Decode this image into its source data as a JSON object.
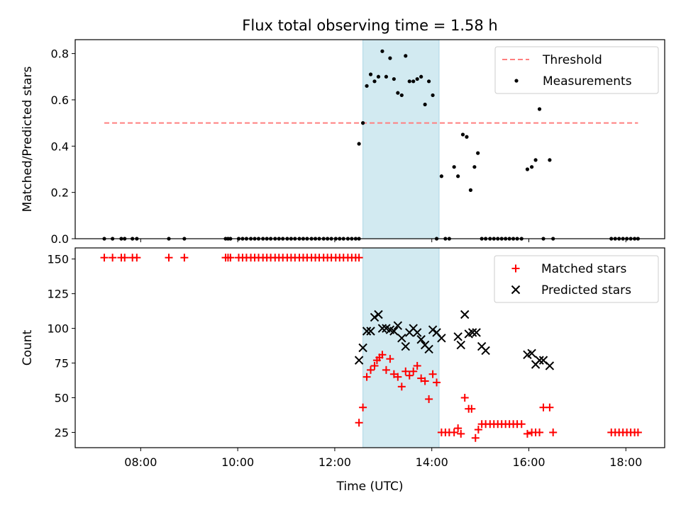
{
  "chart_data": [
    {
      "type": "scatter",
      "title": "Flux total observing time = 1.58 h",
      "ylabel": "Matched/Predicted stars",
      "xlabel": "",
      "xlim": [
        6.65,
        18.8
      ],
      "ylim": [
        0,
        0.86
      ],
      "yticks": [
        0.0,
        0.2,
        0.4,
        0.6,
        0.8
      ],
      "ytick_labels": [
        "0.0",
        "0.2",
        "0.4",
        "0.6",
        "0.8"
      ],
      "highlight_span": [
        12.58,
        14.15
      ],
      "highlight_color": "#add8e6",
      "legend_placement": "top-right",
      "series": [
        {
          "name": "Threshold",
          "kind": "dashed-line",
          "color": "#ff7f7f",
          "x": [
            7.25,
            18.25
          ],
          "y": [
            0.5,
            0.5
          ]
        },
        {
          "name": "Measurements",
          "kind": "dot",
          "color": "#000000",
          "x": [
            7.25,
            7.42,
            7.6,
            7.67,
            7.83,
            7.92,
            8.58,
            8.9,
            9.75,
            9.8,
            9.85,
            10.02,
            10.1,
            10.18,
            10.27,
            10.35,
            10.43,
            10.52,
            10.6,
            10.68,
            10.77,
            10.85,
            10.93,
            11.02,
            11.1,
            11.18,
            11.27,
            11.35,
            11.43,
            11.52,
            11.6,
            11.68,
            11.77,
            11.85,
            11.93,
            12.02,
            12.1,
            12.18,
            12.27,
            12.35,
            12.43,
            12.5,
            12.5,
            12.58,
            12.66,
            12.74,
            12.82,
            12.9,
            12.98,
            13.06,
            13.14,
            13.22,
            13.3,
            13.38,
            13.46,
            13.54,
            13.62,
            13.7,
            13.78,
            13.86,
            13.94,
            14.02,
            14.1,
            14.2,
            14.28,
            14.36,
            14.46,
            14.54,
            14.64,
            14.72,
            14.8,
            14.88,
            14.95,
            15.03,
            15.11,
            15.2,
            15.28,
            15.36,
            15.44,
            15.52,
            15.6,
            15.68,
            15.76,
            15.85,
            15.97,
            16.06,
            16.14,
            16.22,
            16.3,
            16.43,
            16.5,
            17.7,
            17.78,
            17.86,
            17.94,
            18.02,
            18.1,
            18.18,
            18.25
          ],
          "y": [
            0,
            0,
            0,
            0,
            0,
            0,
            0,
            0,
            0,
            0,
            0,
            0,
            0,
            0,
            0,
            0,
            0,
            0,
            0,
            0,
            0,
            0,
            0,
            0,
            0,
            0,
            0,
            0,
            0,
            0,
            0,
            0,
            0,
            0,
            0,
            0,
            0,
            0,
            0,
            0,
            0,
            0,
            0.41,
            0.5,
            0.66,
            0.71,
            0.68,
            0.7,
            0.81,
            0.7,
            0.78,
            0.69,
            0.63,
            0.62,
            0.79,
            0.68,
            0.68,
            0.69,
            0.7,
            0.58,
            0.68,
            0.62,
            0,
            0.27,
            0,
            0,
            0.31,
            0.27,
            0.45,
            0.44,
            0.21,
            0.31,
            0.37,
            0,
            0,
            0,
            0,
            0,
            0,
            0,
            0,
            0,
            0,
            0,
            0.3,
            0.31,
            0.34,
            0.56,
            0,
            0.34,
            0,
            0,
            0,
            0,
            0,
            0,
            0,
            0,
            0
          ]
        }
      ]
    },
    {
      "type": "scatter",
      "title": "",
      "xlabel": "Time (UTC)",
      "ylabel": "Count",
      "xlim": [
        6.65,
        18.8
      ],
      "ylim": [
        14,
        158
      ],
      "xticks": [
        8,
        10,
        12,
        14,
        16,
        18
      ],
      "xtick_labels": [
        "08:00",
        "10:00",
        "12:00",
        "14:00",
        "16:00",
        "18:00"
      ],
      "yticks": [
        25,
        50,
        75,
        100,
        125,
        150
      ],
      "ytick_labels": [
        "25",
        "50",
        "75",
        "100",
        "125",
        "150"
      ],
      "highlight_span": [
        12.58,
        14.15
      ],
      "highlight_color": "#add8e6",
      "legend_placement": "top-right",
      "series": [
        {
          "name": "Matched stars",
          "marker": "plus",
          "color": "#ff0000",
          "x": [
            7.25,
            7.42,
            7.6,
            7.67,
            7.83,
            7.92,
            8.58,
            8.9,
            9.75,
            9.8,
            9.85,
            10.02,
            10.1,
            10.18,
            10.27,
            10.35,
            10.43,
            10.52,
            10.6,
            10.68,
            10.77,
            10.85,
            10.93,
            11.02,
            11.1,
            11.18,
            11.27,
            11.35,
            11.43,
            11.52,
            11.6,
            11.68,
            11.77,
            11.85,
            11.93,
            12.02,
            12.1,
            12.18,
            12.27,
            12.35,
            12.43,
            12.5,
            12.5,
            12.58,
            12.66,
            12.74,
            12.82,
            12.87,
            12.92,
            12.98,
            13.06,
            13.14,
            13.22,
            13.3,
            13.38,
            13.46,
            13.54,
            13.62,
            13.7,
            13.78,
            13.86,
            13.94,
            14.02,
            14.1,
            14.2,
            14.28,
            14.36,
            14.46,
            14.54,
            14.6,
            14.68,
            14.76,
            14.82,
            14.9,
            14.96,
            15.03,
            15.11,
            15.2,
            15.28,
            15.36,
            15.44,
            15.52,
            15.6,
            15.68,
            15.76,
            15.85,
            15.97,
            16.06,
            16.14,
            16.22,
            16.3,
            16.43,
            16.5,
            17.7,
            17.78,
            17.86,
            17.94,
            18.02,
            18.1,
            18.18,
            18.25
          ],
          "y": [
            151,
            151,
            151,
            151,
            151,
            151,
            151,
            151,
            151,
            151,
            151,
            151,
            151,
            151,
            151,
            151,
            151,
            151,
            151,
            151,
            151,
            151,
            151,
            151,
            151,
            151,
            151,
            151,
            151,
            151,
            151,
            151,
            151,
            151,
            151,
            151,
            151,
            151,
            151,
            151,
            151,
            151,
            32,
            43,
            65,
            70,
            73,
            77,
            79,
            81,
            70,
            78,
            67,
            65,
            58,
            69,
            66,
            69,
            73,
            64,
            62,
            49,
            67,
            61,
            25,
            25,
            25,
            25,
            28,
            24,
            50,
            42,
            42,
            21,
            27,
            31,
            31,
            31,
            31,
            31,
            31,
            31,
            31,
            31,
            31,
            31,
            24,
            25,
            25,
            25,
            43,
            43,
            25,
            25,
            25,
            25,
            25,
            25,
            25,
            25,
            25
          ]
        },
        {
          "name": "Predicted stars",
          "marker": "x",
          "color": "#000000",
          "x": [
            12.5,
            12.58,
            12.66,
            12.74,
            12.82,
            12.9,
            12.98,
            13.06,
            13.14,
            13.22,
            13.3,
            13.38,
            13.46,
            13.54,
            13.62,
            13.7,
            13.78,
            13.86,
            13.94,
            14.02,
            14.1,
            14.2,
            14.54,
            14.6,
            14.68,
            14.76,
            14.84,
            14.92,
            15.03,
            15.11,
            15.97,
            16.06,
            16.14,
            16.22,
            16.3,
            16.43
          ],
          "y": [
            77,
            86,
            98,
            98,
            108,
            110,
            100,
            100,
            99,
            98,
            102,
            93,
            87,
            97,
            100,
            97,
            92,
            88,
            85,
            99,
            97,
            93,
            94,
            88,
            110,
            96,
            97,
            97,
            87,
            84,
            81,
            82,
            74,
            77,
            77,
            73
          ]
        }
      ]
    }
  ]
}
